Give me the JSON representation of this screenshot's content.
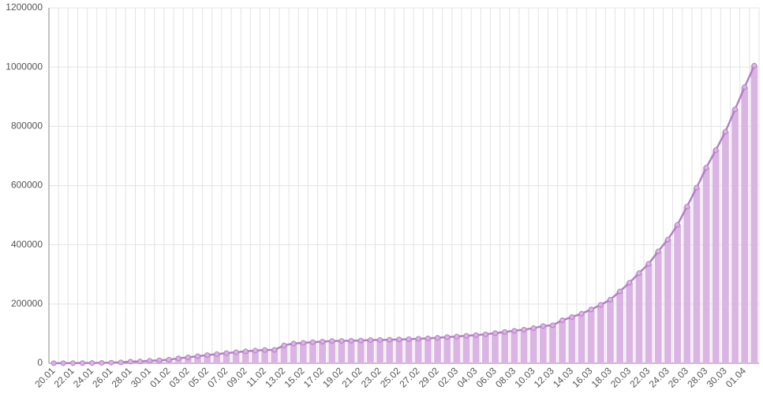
{
  "chart_data": {
    "type": "bar",
    "line_overlay": true,
    "color": "#dab4e2",
    "line_color": "#b47fc6",
    "categories": [
      "20.01",
      null,
      "22.01",
      null,
      "24.01",
      null,
      "26.01",
      null,
      "28.01",
      null,
      "30.01",
      null,
      "01.02",
      null,
      "03.02",
      null,
      "05.02",
      null,
      "07.02",
      null,
      "09.02",
      null,
      "11.02",
      null,
      "13.02",
      null,
      "15.02",
      null,
      "17.02",
      null,
      "19.02",
      null,
      "21.02",
      null,
      "23.02",
      null,
      "25.02",
      null,
      "27.02",
      null,
      "29.02",
      null,
      "02.03",
      null,
      "04.03",
      null,
      "06.03",
      null,
      "08.03",
      null,
      "10.03",
      null,
      "12.03",
      null,
      "14.03",
      null,
      "16.03",
      null,
      "18.03",
      null,
      "20.03",
      null,
      "22.03",
      null,
      "24.03",
      null,
      "26.03",
      null,
      "28.03",
      null,
      "30.03",
      null,
      "01.04",
      null
    ],
    "values": [
      282,
      314,
      555,
      654,
      941,
      1434,
      2118,
      2927,
      5578,
      6166,
      8234,
      9927,
      12038,
      16787,
      19887,
      23898,
      27643,
      30802,
      34395,
      37129,
      40151,
      42763,
      44803,
      45222,
      60370,
      66887,
      69032,
      71226,
      73260,
      75138,
      75641,
      76199,
      76843,
      78599,
      78985,
      79570,
      80415,
      81397,
      82756,
      84124,
      86013,
      88371,
      90309,
      92844,
      95124,
      97886,
      101800,
      105836,
      109835,
      113582,
      118582,
      125865,
      128343,
      145193,
      156097,
      167449,
      181531,
      197146,
      214910,
      242708,
      272166,
      304524,
      335955,
      378287,
      417966,
      467594,
      529591,
      593291,
      660706,
      720117,
      782365,
      857487,
      932605,
      1005000
    ],
    "ylim": [
      0,
      1200000
    ],
    "yticks": [
      0,
      200000,
      400000,
      600000,
      800000,
      1000000,
      1200000
    ],
    "grid": true
  }
}
